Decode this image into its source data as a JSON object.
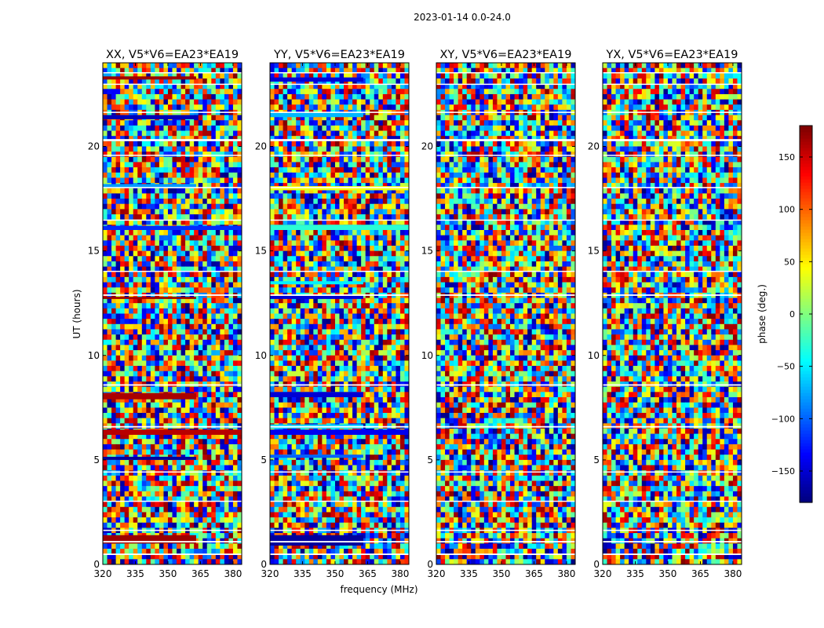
{
  "figure": {
    "suptitle": "2023-01-14 0.0-24.0",
    "xlabel": "frequency (MHz)",
    "ylabel": "UT (hours)"
  },
  "chart_data": {
    "type": "heatmap",
    "xlim": [
      320,
      384
    ],
    "ylim": [
      0,
      24
    ],
    "x_ticks": [
      320,
      335,
      350,
      365,
      380
    ],
    "y_ticks": [
      0,
      5,
      10,
      15,
      20
    ],
    "panels": [
      {
        "title": "XX, V5*V6=EA23*EA19",
        "pol": "XX"
      },
      {
        "title": "YY, V5*V6=EA23*EA19",
        "pol": "YY"
      },
      {
        "title": "XY, V5*V6=EA23*EA19",
        "pol": "XY"
      },
      {
        "title": "YX, V5*V6=EA23*EA19",
        "pol": "YX"
      }
    ],
    "flagged_ut_ranges": [
      [
        0.45,
        0.52
      ],
      [
        1.05,
        1.12
      ],
      [
        1.6,
        1.66
      ],
      [
        3.0,
        3.05
      ],
      [
        4.4,
        4.45
      ],
      [
        6.55,
        6.62
      ],
      [
        8.55,
        8.62
      ],
      [
        12.85,
        12.92
      ],
      [
        14.0,
        14.05
      ],
      [
        16.45,
        16.5
      ],
      [
        18.0,
        18.06
      ],
      [
        19.55,
        19.6
      ],
      [
        20.25,
        20.35
      ],
      [
        21.6,
        21.66
      ],
      [
        22.95,
        23.0
      ],
      [
        23.5,
        23.55
      ]
    ],
    "coherent_bands": {
      "XX": [
        {
          "ut": [
            1.0,
            1.4
          ],
          "phase": 170,
          "freq_max": 363
        },
        {
          "ut": [
            5.0,
            5.15
          ],
          "phase": -170,
          "freq_max": 363
        },
        {
          "ut": [
            6.2,
            6.45
          ],
          "phase": 160,
          "freq_max": 384
        },
        {
          "ut": [
            7.9,
            8.2
          ],
          "phase": 165,
          "freq_max": 363
        },
        {
          "ut": [
            12.7,
            12.8
          ],
          "phase": 170,
          "freq_max": 363
        },
        {
          "ut": [
            16.0,
            16.2
          ],
          "phase": -120,
          "freq_max": 384
        },
        {
          "ut": [
            18.0,
            18.2
          ],
          "phase": -80,
          "freq_max": 363
        },
        {
          "ut": [
            21.3,
            21.5
          ],
          "phase": -160,
          "freq_max": 363
        },
        {
          "ut": [
            23.2,
            23.35
          ],
          "phase": 170,
          "freq_max": 363
        }
      ],
      "YY": [
        {
          "ut": [
            0.9,
            1.4
          ],
          "phase": -170,
          "freq_max": 363
        },
        {
          "ut": [
            5.1,
            5.25
          ],
          "phase": -100,
          "freq_max": 363
        },
        {
          "ut": [
            6.2,
            6.45
          ],
          "phase": -140,
          "freq_max": 384
        },
        {
          "ut": [
            6.5,
            6.7
          ],
          "phase": -60,
          "freq_max": 363
        },
        {
          "ut": [
            8.0,
            8.25
          ],
          "phase": -150,
          "freq_max": 363
        },
        {
          "ut": [
            12.7,
            12.85
          ],
          "phase": -150,
          "freq_max": 363
        },
        {
          "ut": [
            13.4,
            13.55
          ],
          "phase": -50,
          "freq_max": 363
        },
        {
          "ut": [
            16.0,
            16.25
          ],
          "phase": -30,
          "freq_max": 384
        },
        {
          "ut": [
            17.9,
            18.1
          ],
          "phase": 40,
          "freq_max": 384
        },
        {
          "ut": [
            21.4,
            21.6
          ],
          "phase": -70,
          "freq_max": 363
        },
        {
          "ut": [
            23.1,
            23.3
          ],
          "phase": -150,
          "freq_max": 363
        }
      ],
      "XY": [],
      "YX": []
    },
    "colorbar": {
      "label": "phase (deg.)",
      "range": [
        -180,
        180
      ],
      "ticks": [
        "150",
        "100",
        "50",
        "0",
        "−50",
        "−100",
        "−150"
      ],
      "tick_values": [
        150,
        100,
        50,
        0,
        -50,
        -100,
        -150
      ],
      "colormap": "jet"
    }
  }
}
